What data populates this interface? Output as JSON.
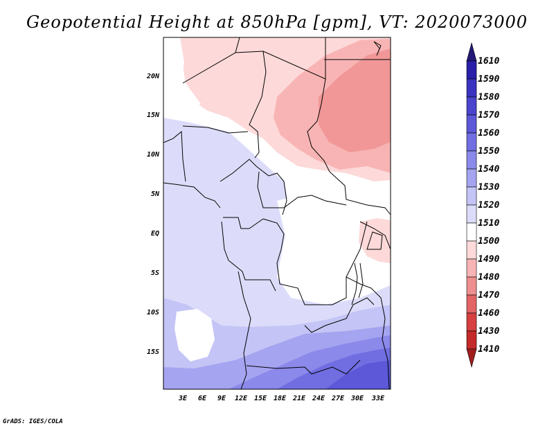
{
  "title": "Geopotential Height at 850hPa [gpm], VT: 2020073000",
  "credit": "GrADS: IGES/COLA",
  "map": {
    "lat_labels": [
      "20N",
      "15N",
      "10N",
      "5N",
      "EQ",
      "5S",
      "10S",
      "15S"
    ],
    "lon_labels": [
      "3E",
      "6E",
      "9E",
      "12E",
      "15E",
      "18E",
      "21E",
      "24E",
      "27E",
      "30E",
      "33E"
    ]
  },
  "colorbar": {
    "levels": [
      "1610",
      "1590",
      "1580",
      "1570",
      "1560",
      "1550",
      "1540",
      "1530",
      "1520",
      "1510",
      "1500",
      "1490",
      "1480",
      "1470",
      "1460",
      "1430",
      "1410"
    ],
    "colors": [
      "#241878",
      "#2a1fa8",
      "#3a33c0",
      "#4a45cc",
      "#5c58d8",
      "#716ee2",
      "#8b89ea",
      "#a5a4f0",
      "#c4c4f6",
      "#dcdcfa",
      "#ffffff",
      "#fdd9d9",
      "#f8b4b4",
      "#ef8e8e",
      "#e26464",
      "#d64040",
      "#c52a2a",
      "#a11d1d"
    ]
  }
}
